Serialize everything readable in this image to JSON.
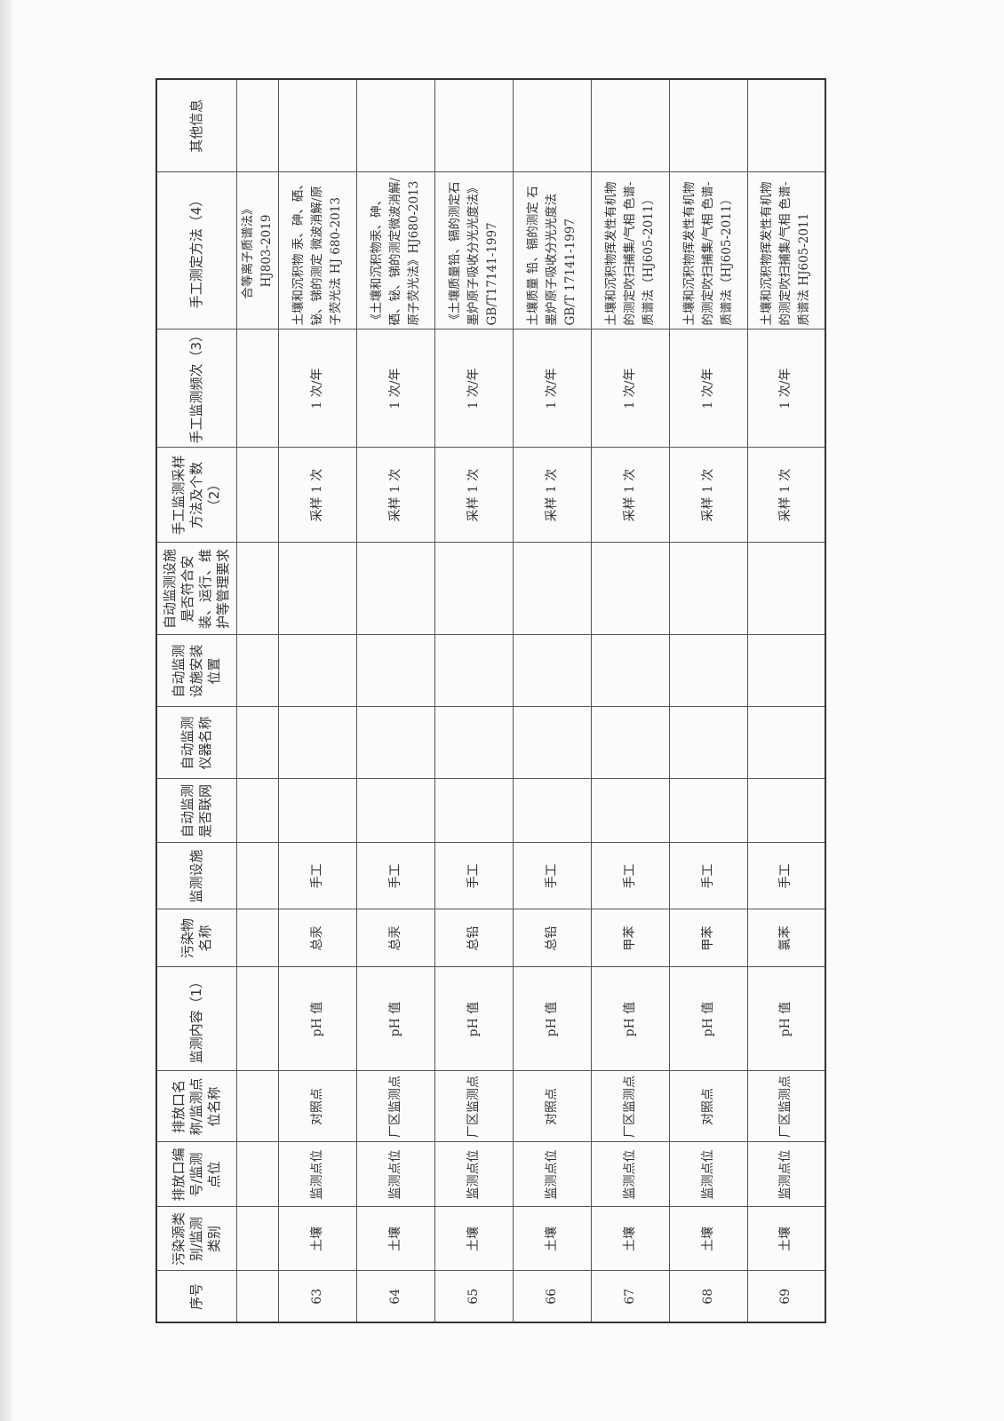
{
  "headers": [
    "序号",
    "污染源类别/监测类别",
    "排放口编号/监测点位",
    "排放口名称/监测点位名称",
    "监测内容（1）",
    "污染物名称",
    "监测设施",
    "自动监测是否联网",
    "自动监测仪器名称",
    "自动监测设施安装位置",
    "自动监测设施是否符合安装、运行、维护等管理要求",
    "手工监测采样方法及个数（2）",
    "手工监测频次（3）",
    "手工测定方法（4）",
    "其他信息"
  ],
  "continuation_method": "合等离子质谱法》\nHJ803-2019",
  "rows": [
    {
      "no": "63",
      "category": "土壤",
      "point_code": "监测点位",
      "point_name": "对照点",
      "content": "pH 值",
      "pollutant": "总汞",
      "facility": "手工",
      "sampling": "采样 1 次",
      "frequency": "1 次/年",
      "method": "土壤和沉积物 汞、砷、硒、铋、锑的测定 微波消解/原子荧光法 HJ 680-2013"
    },
    {
      "no": "64",
      "category": "土壤",
      "point_code": "监测点位",
      "point_name": "厂区监测点",
      "content": "pH 值",
      "pollutant": "总汞",
      "facility": "手工",
      "sampling": "采样 1 次",
      "frequency": "1 次/年",
      "method": "《土壤和沉积物汞、砷、硒、铋、锑的测定微波消解/原子荧光法》HJ680-2013"
    },
    {
      "no": "65",
      "category": "土壤",
      "point_code": "监测点位",
      "point_name": "厂区监测点",
      "content": "pH 值",
      "pollutant": "总铅",
      "facility": "手工",
      "sampling": "采样 1 次",
      "frequency": "1 次/年",
      "method": "《土壤质量铅、镉的测定石墨炉原子吸收分光光度法》GB/T17141-1997"
    },
    {
      "no": "66",
      "category": "土壤",
      "point_code": "监测点位",
      "point_name": "对照点",
      "content": "pH 值",
      "pollutant": "总铅",
      "facility": "手工",
      "sampling": "采样 1 次",
      "frequency": "1 次/年",
      "method": "土壤质量 铅、镉的测定 石墨炉原子吸收分光光度法 GB/T 17141-1997"
    },
    {
      "no": "67",
      "category": "土壤",
      "point_code": "监测点位",
      "point_name": "厂区监测点",
      "content": "pH 值",
      "pollutant": "甲苯",
      "facility": "手工",
      "sampling": "采样 1 次",
      "frequency": "1 次/年",
      "method": "土壤和沉积物挥发性有机物的测定吹扫捕集/气相 色谱-质谱法（HJ605-2011）"
    },
    {
      "no": "68",
      "category": "土壤",
      "point_code": "监测点位",
      "point_name": "对照点",
      "content": "pH 值",
      "pollutant": "甲苯",
      "facility": "手工",
      "sampling": "采样 1 次",
      "frequency": "1 次/年",
      "method": "土壤和沉积物挥发性有机物的测定吹扫捕集/气相 色谱-质谱法（HJ605-2011）"
    },
    {
      "no": "69",
      "category": "土壤",
      "point_code": "监测点位",
      "point_name": "厂区监测点",
      "content": "pH 值",
      "pollutant": "氯苯",
      "facility": "手工",
      "sampling": "采样 1 次",
      "frequency": "1 次/年",
      "method": "土壤和沉积物挥发性有机物的测定吹扫捕集/气相 色谱-质谱法 HJ605-2011"
    }
  ]
}
